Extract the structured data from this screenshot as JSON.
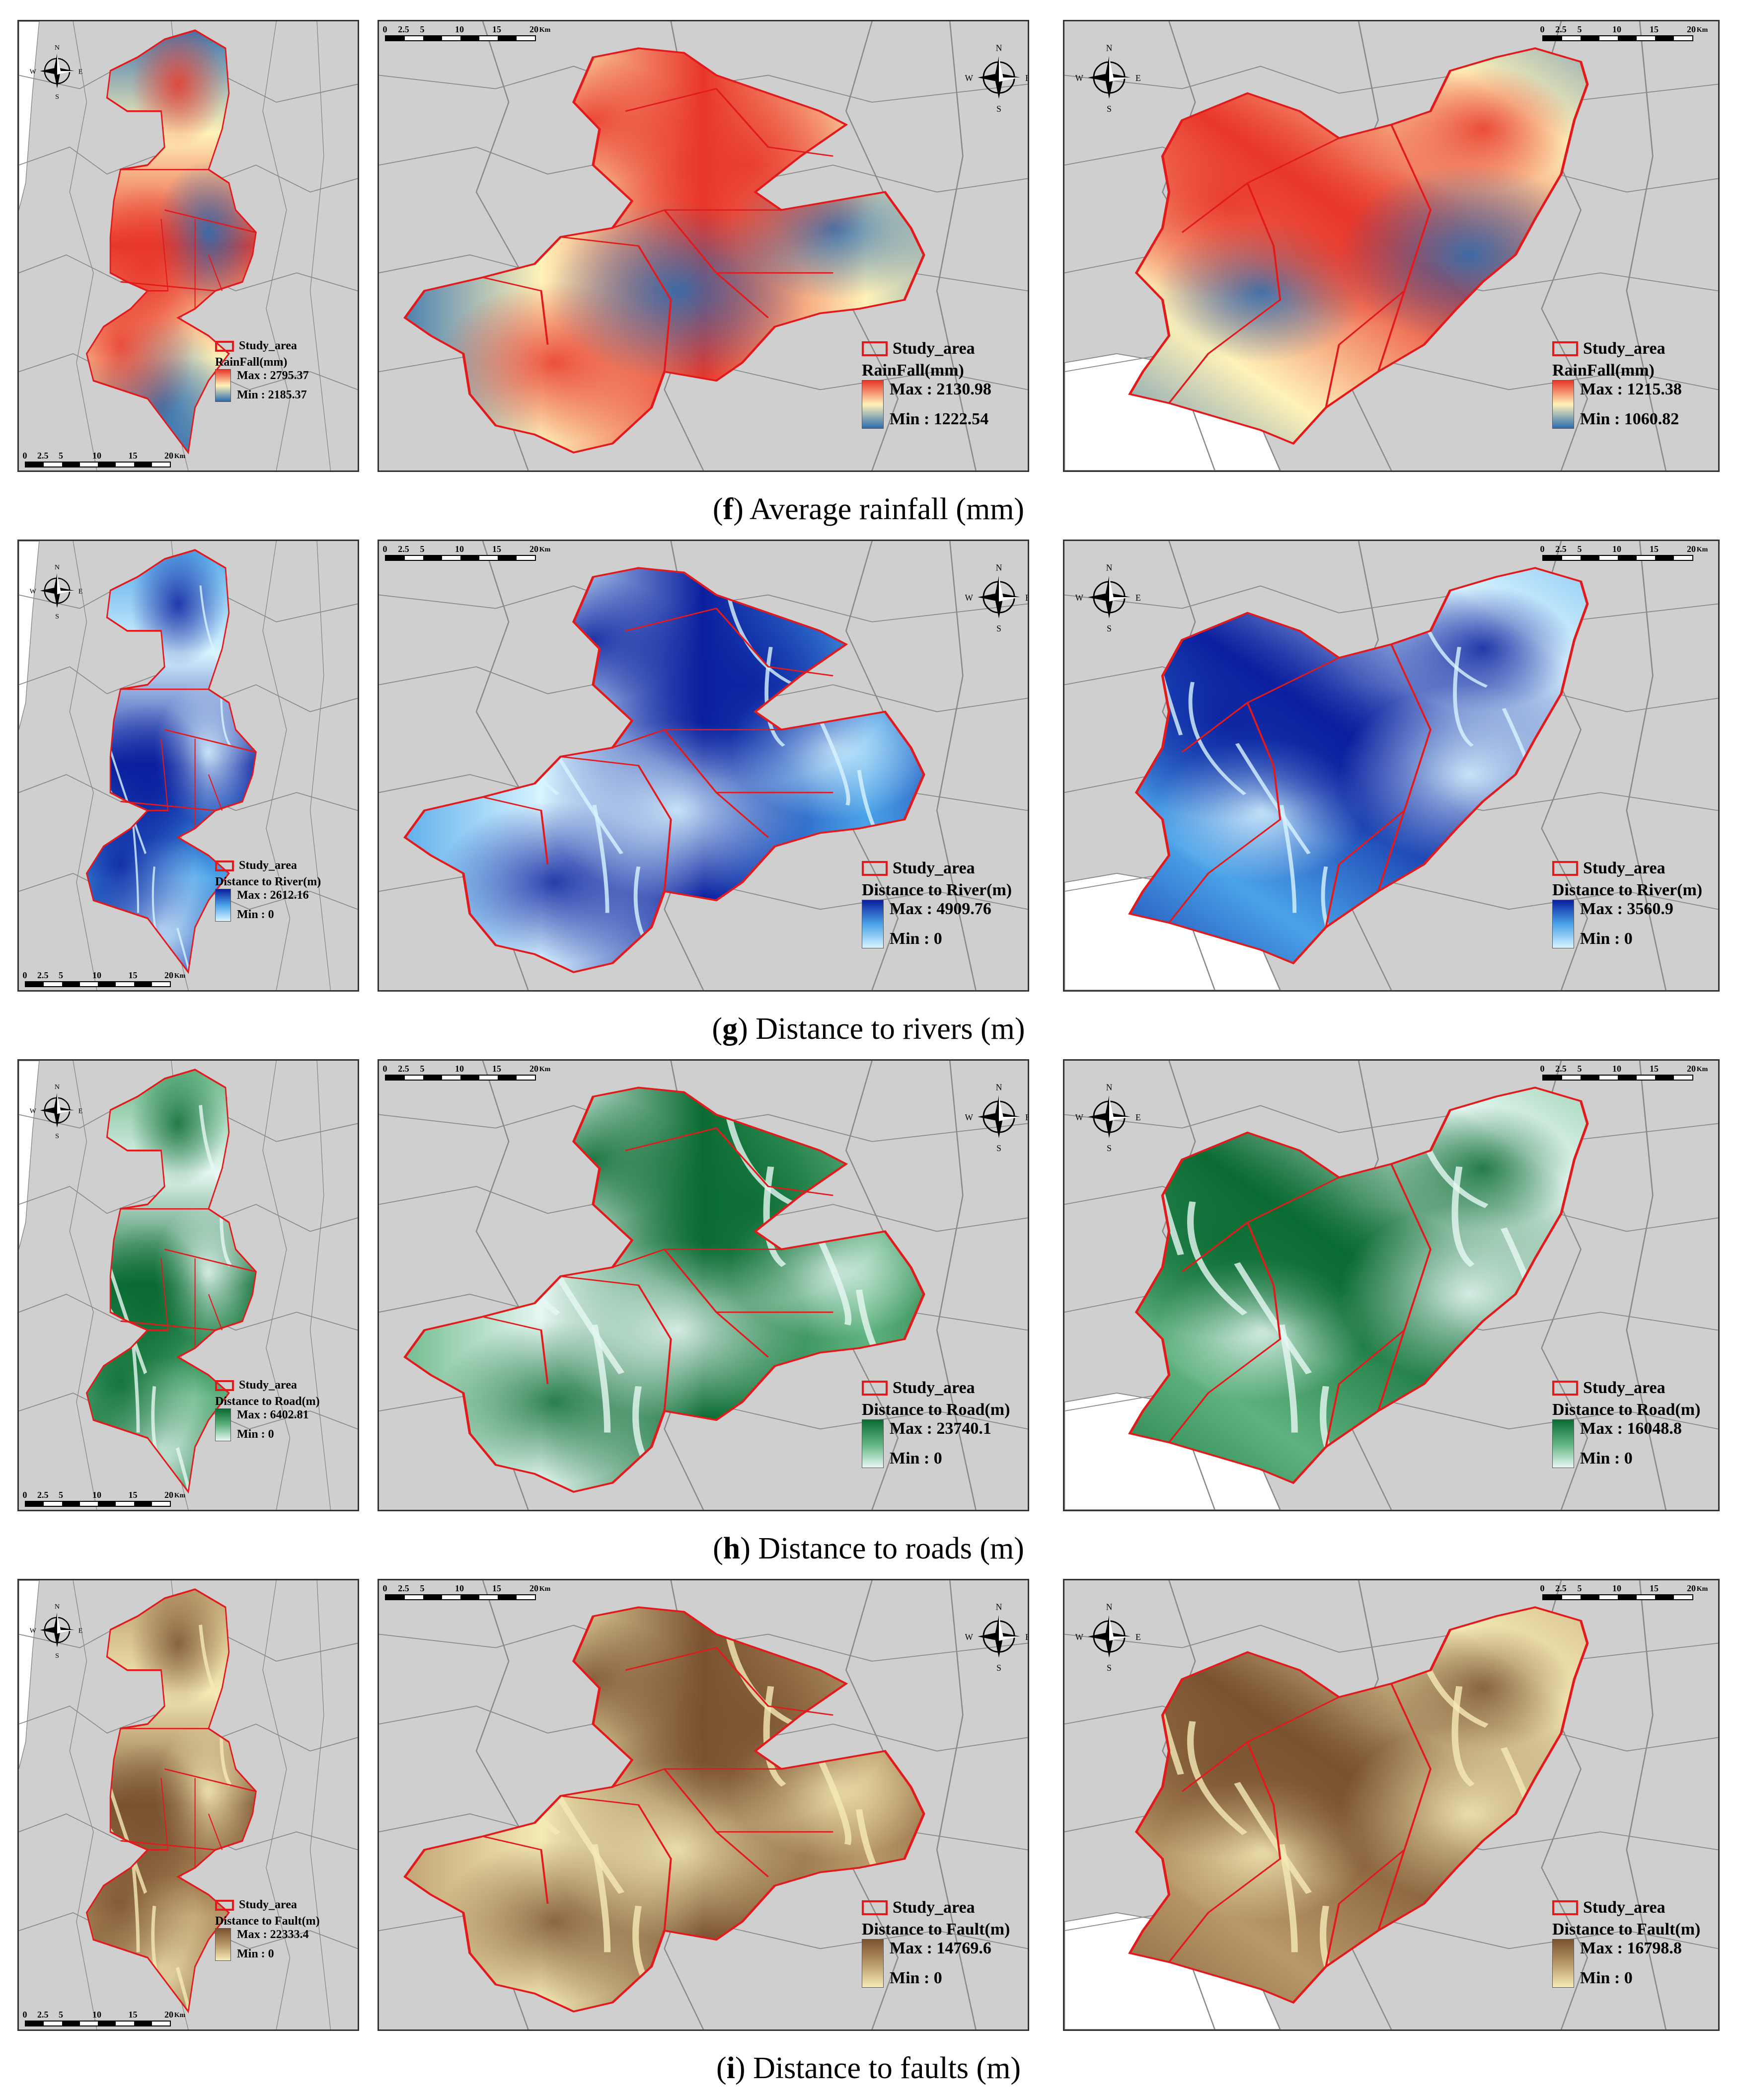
{
  "legend_study_area": "Study_area",
  "scale_labels": [
    "0",
    "2.5",
    "5",
    "10",
    "15",
    "20"
  ],
  "scale_unit": "Km",
  "compass": {
    "n": "N",
    "s": "S",
    "e": "E",
    "w": "W"
  },
  "rows": [
    {
      "id": "f",
      "caption_letter": "f",
      "caption_text": "Average rainfall (mm)",
      "ramp_high": "#e8362a",
      "ramp_mid": "#fff2b8",
      "ramp_low": "#2b6cb0",
      "panels": [
        {
          "legend_title": "RainFall(mm)",
          "max_label": "Max : 2795.37",
          "min_label": "Min : 2185.37"
        },
        {
          "legend_title": "RainFall(mm)",
          "max_label": "Max : 2130.98",
          "min_label": "Min : 1222.54"
        },
        {
          "legend_title": "RainFall(mm)",
          "max_label": "Max : 1215.38",
          "min_label": "Min : 1060.82"
        }
      ]
    },
    {
      "id": "g",
      "caption_letter": "g",
      "caption_text": "Distance to rivers (m)",
      "ramp_high": "#0a1f9e",
      "ramp_mid": "#4aa3e8",
      "ramp_low": "#d8f4ff",
      "panels": [
        {
          "legend_title": "Distance to River(m)",
          "max_label": "Max : 2612.16",
          "min_label": "Min : 0"
        },
        {
          "legend_title": "Distance to River(m)",
          "max_label": "Max : 4909.76",
          "min_label": "Min : 0"
        },
        {
          "legend_title": "Distance to River(m)",
          "max_label": "Max : 3560.9",
          "min_label": "Min : 0"
        }
      ]
    },
    {
      "id": "h",
      "caption_letter": "h",
      "caption_text": "Distance to roads (m)",
      "ramp_high": "#0a6b32",
      "ramp_mid": "#5fb27f",
      "ramp_low": "#e6f7f2",
      "panels": [
        {
          "legend_title": "Distance to Road(m)",
          "max_label": "Max : 6402.81",
          "min_label": "Min : 0"
        },
        {
          "legend_title": "Distance to Road(m)",
          "max_label": "Max : 23740.1",
          "min_label": "Min : 0"
        },
        {
          "legend_title": "Distance to Road(m)",
          "max_label": "Max : 16048.8",
          "min_label": "Min : 0"
        }
      ]
    },
    {
      "id": "i",
      "caption_letter": "i",
      "caption_text": "Distance to faults (m)",
      "ramp_high": "#7a5230",
      "ramp_mid": "#b89868",
      "ramp_low": "#f5eab5",
      "panels": [
        {
          "legend_title": "Distance to Fault(m)",
          "max_label": "Max : 22333.4",
          "min_label": "Min : 0"
        },
        {
          "legend_title": "Distance to Fault(m)",
          "max_label": "Max : 14769.6",
          "min_label": "Min : 0"
        },
        {
          "legend_title": "Distance to Fault(m)",
          "max_label": "Max : 16798.8",
          "min_label": "Min : 0"
        }
      ]
    }
  ]
}
